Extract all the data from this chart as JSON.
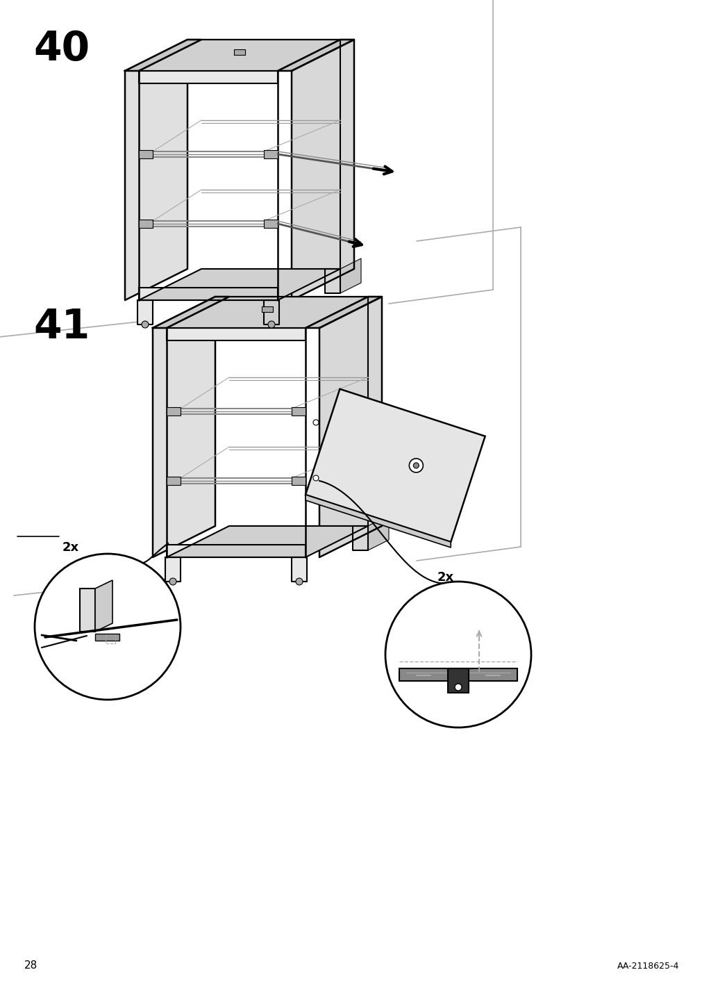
{
  "page_number": "28",
  "reference_code": "AA-2118625-4",
  "background_color": "#ffffff",
  "line_color": "#000000",
  "label_fontsize": 42,
  "page_num_fontsize": 11,
  "ref_fontsize": 9,
  "multiplier_fontsize": 13
}
